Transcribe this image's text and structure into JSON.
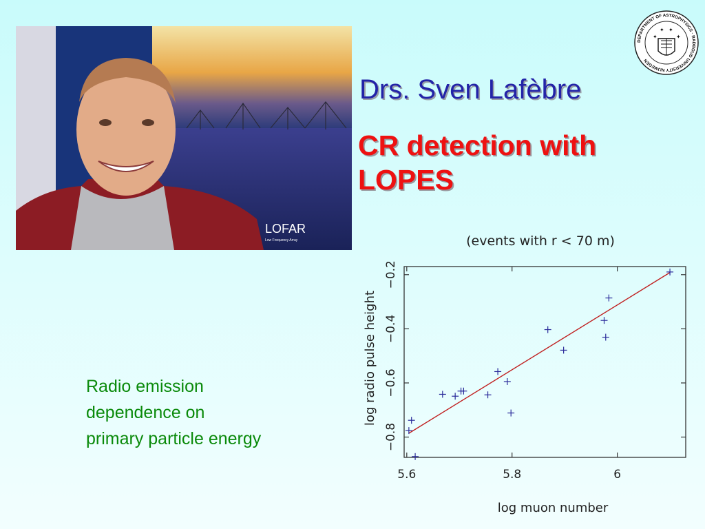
{
  "header": {
    "name": "Drs. Sven Lafèbre",
    "subtitle_lines": [
      "CR detection with",
      "LOPES"
    ]
  },
  "logo": {
    "icon": "university-seal-icon",
    "ring_text": "DEPARTMENT OF ASTROPHYSICS · RADBOUD UNIVERSITY NIJMEGEN"
  },
  "photo": {
    "description_icon": "portrait-photo",
    "poster_title": "LOFAR",
    "poster_subtitle": "Low Frequency Array"
  },
  "caption": {
    "lines": [
      "Radio emission",
      "dependence on",
      "primary particle energy"
    ]
  },
  "chart_data": {
    "type": "scatter",
    "title": "(events with r < 70 m)",
    "xlabel": "log muon number",
    "ylabel": "log radio pulse height",
    "xlim": [
      5.595,
      6.13
    ],
    "ylim": [
      -0.875,
      -0.17
    ],
    "xticks": [
      5.6,
      5.8,
      6
    ],
    "xtick_labels": [
      "5.6",
      "5.8",
      "6"
    ],
    "yticks": [
      -0.8,
      -0.6,
      -0.4,
      -0.2
    ],
    "ytick_labels": [
      "−0.8",
      "−0.6",
      "−0.4",
      "−0.2"
    ],
    "marker_color": "#2a2a9a",
    "fit_color": "#c02020",
    "points": [
      {
        "x": 5.604,
        "y": -0.776
      },
      {
        "x": 5.609,
        "y": -0.738
      },
      {
        "x": 5.616,
        "y": -0.872
      },
      {
        "x": 5.668,
        "y": -0.642
      },
      {
        "x": 5.692,
        "y": -0.649
      },
      {
        "x": 5.703,
        "y": -0.63
      },
      {
        "x": 5.708,
        "y": -0.63
      },
      {
        "x": 5.754,
        "y": -0.644
      },
      {
        "x": 5.773,
        "y": -0.558
      },
      {
        "x": 5.791,
        "y": -0.595
      },
      {
        "x": 5.798,
        "y": -0.711
      },
      {
        "x": 5.868,
        "y": -0.403
      },
      {
        "x": 5.898,
        "y": -0.479
      },
      {
        "x": 5.975,
        "y": -0.369
      },
      {
        "x": 5.978,
        "y": -0.431
      },
      {
        "x": 5.984,
        "y": -0.286
      },
      {
        "x": 6.1,
        "y": -0.19
      }
    ],
    "fit_line": {
      "x": [
        5.604,
        6.1
      ],
      "y": [
        -0.786,
        -0.192
      ]
    }
  }
}
